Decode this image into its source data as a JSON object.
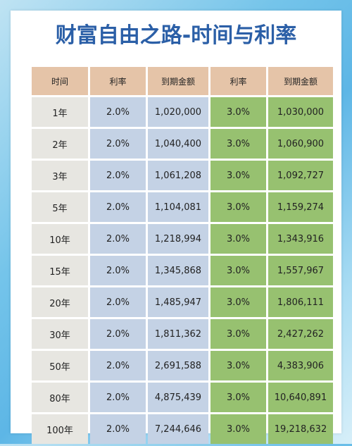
{
  "title": "财富自由之路-时间与利率",
  "headers": [
    "时间",
    "利率",
    "到期金额",
    "利率",
    "到期金额"
  ],
  "rows": [
    {
      "time": "1年",
      "rate_a": "2.0%",
      "amount_a": "1,020,000",
      "rate_b": "3.0%",
      "amount_b": "1,030,000"
    },
    {
      "time": "2年",
      "rate_a": "2.0%",
      "amount_a": "1,040,400",
      "rate_b": "3.0%",
      "amount_b": "1,060,900"
    },
    {
      "time": "3年",
      "rate_a": "2.0%",
      "amount_a": "1,061,208",
      "rate_b": "3.0%",
      "amount_b": "1,092,727"
    },
    {
      "time": "5年",
      "rate_a": "2.0%",
      "amount_a": "1,104,081",
      "rate_b": "3.0%",
      "amount_b": "1,159,274"
    },
    {
      "time": "10年",
      "rate_a": "2.0%",
      "amount_a": "1,218,994",
      "rate_b": "3.0%",
      "amount_b": "1,343,916"
    },
    {
      "time": "15年",
      "rate_a": "2.0%",
      "amount_a": "1,345,868",
      "rate_b": "3.0%",
      "amount_b": "1,557,967"
    },
    {
      "time": "20年",
      "rate_a": "2.0%",
      "amount_a": "1,485,947",
      "rate_b": "3.0%",
      "amount_b": "1,806,111"
    },
    {
      "time": "30年",
      "rate_a": "2.0%",
      "amount_a": "1,811,362",
      "rate_b": "3.0%",
      "amount_b": "2,427,262"
    },
    {
      "time": "50年",
      "rate_a": "2.0%",
      "amount_a": "2,691,588",
      "rate_b": "3.0%",
      "amount_b": "4,383,906"
    },
    {
      "time": "80年",
      "rate_a": "2.0%",
      "amount_a": "4,875,439",
      "rate_b": "3.0%",
      "amount_b": "10,640,891"
    },
    {
      "time": "100年",
      "rate_a": "2.0%",
      "amount_a": "7,244,646",
      "rate_b": "3.0%",
      "amount_b": "19,218,632"
    }
  ],
  "colors": {
    "title": "#2b5fa7",
    "header": "#e5c4a8",
    "time_col": "#e7e6e1",
    "rate_2_cols": "#c4d2e5",
    "rate_3_cols": "#97c170"
  }
}
